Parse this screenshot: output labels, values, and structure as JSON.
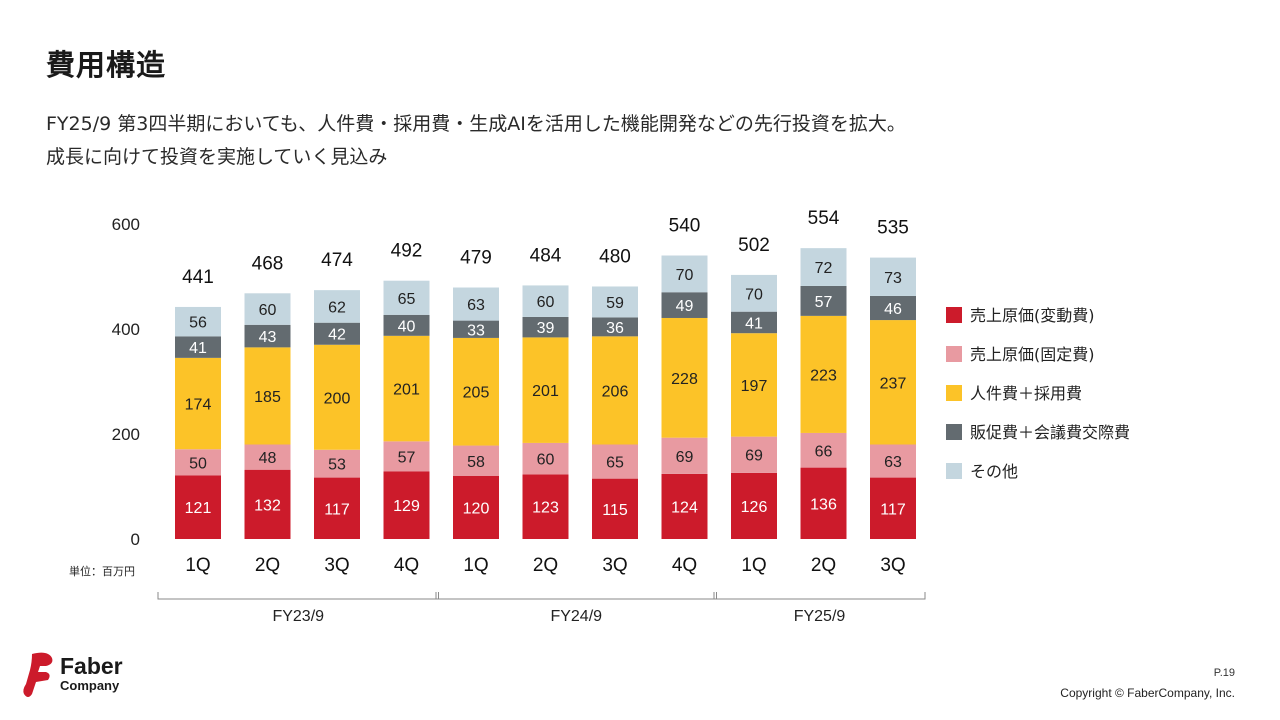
{
  "page": {
    "title": "費用構造",
    "subtitle_lines": [
      "FY25/9 第3四半期においても、人件費・採用費・生成AIを活用した機能開発などの先行投資を拡大。",
      "成長に向けて投資を実施していく見込み"
    ],
    "page_number": "P.19",
    "copyright": "Copyright © FaberCompany, Inc.",
    "logo_line1": "Faber",
    "logo_line2": "Company"
  },
  "chart_data": {
    "type": "bar",
    "stacked": true,
    "unit_label": "単位：百万円",
    "ylim": [
      0,
      600
    ],
    "yticks": [
      0,
      200,
      400,
      600
    ],
    "grid": false,
    "legend_position": "right",
    "categories": [
      "1Q",
      "2Q",
      "3Q",
      "4Q",
      "1Q",
      "2Q",
      "3Q",
      "4Q",
      "1Q",
      "2Q",
      "3Q"
    ],
    "groups": [
      {
        "label": "FY23/9",
        "start": 0,
        "end": 3
      },
      {
        "label": "FY24/9",
        "start": 4,
        "end": 7
      },
      {
        "label": "FY25/9",
        "start": 8,
        "end": 10
      }
    ],
    "totals": [
      441,
      468,
      474,
      492,
      479,
      484,
      480,
      540,
      502,
      554,
      535
    ],
    "series": [
      {
        "name": "売上原価(変動費)",
        "color": "#cc1b2b",
        "label_color": "#ffffff",
        "values": [
          121,
          132,
          117,
          129,
          120,
          123,
          115,
          124,
          126,
          136,
          117
        ]
      },
      {
        "name": "売上原価(固定費)",
        "color": "#e89aa1",
        "label_color": "#222222",
        "values": [
          50,
          48,
          53,
          57,
          58,
          60,
          65,
          69,
          69,
          66,
          63
        ]
      },
      {
        "name": "人件費＋採用費",
        "color": "#fcc328",
        "label_color": "#222222",
        "values": [
          174,
          185,
          200,
          201,
          205,
          201,
          206,
          228,
          197,
          223,
          237
        ]
      },
      {
        "name": "販促費＋会議費交際費",
        "color": "#636b70",
        "label_color": "#ffffff",
        "values": [
          41,
          43,
          42,
          40,
          33,
          39,
          36,
          49,
          41,
          57,
          46
        ]
      },
      {
        "name": "その他",
        "color": "#c4d6df",
        "label_color": "#222222",
        "values": [
          56,
          60,
          62,
          65,
          63,
          60,
          59,
          70,
          70,
          72,
          73
        ]
      }
    ]
  }
}
